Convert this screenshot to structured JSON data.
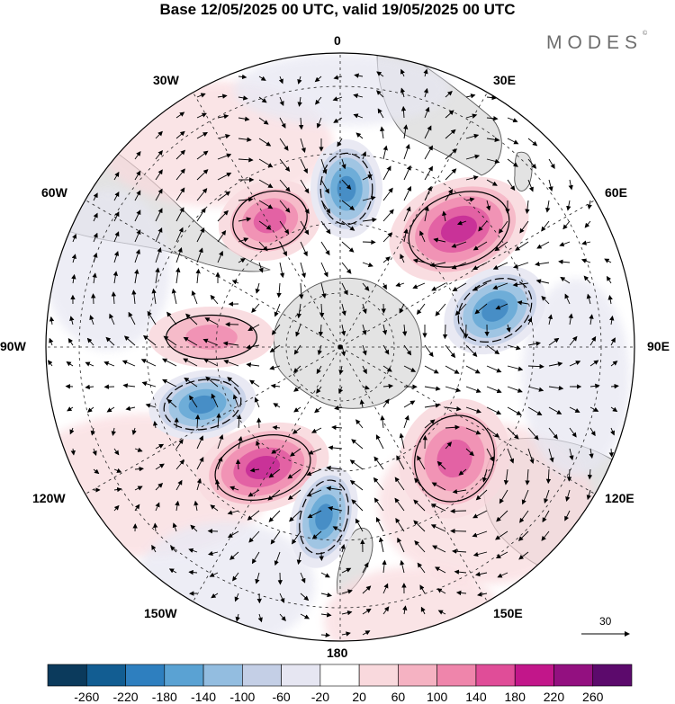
{
  "title": "Base 12/05/2025 00 UTC, valid 19/05/2025 00 UTC",
  "brand": "MODES",
  "brand_mark": "©",
  "map": {
    "projection": "south-polar-stereographic",
    "longitude_labels": {
      "top": "0",
      "top_right": "30E",
      "right_upper": "60E",
      "right": "90E",
      "right_lower": "120E",
      "bottom_right": "150E",
      "bottom": "180",
      "bottom_left": "150W",
      "left_lower": "120W",
      "left": "90W",
      "left_upper": "60W",
      "top_left": "30W"
    },
    "colors": {
      "land": "#e3e3e3",
      "coast": "#555555",
      "grid": "#222222"
    },
    "anomalies": [
      {
        "name": "atlantic-high",
        "sign": "positive",
        "peak": 180
      },
      {
        "name": "indian-high",
        "sign": "positive",
        "peak": 220
      },
      {
        "name": "pacific-high",
        "sign": "positive",
        "peak": 220
      },
      {
        "name": "east-pacific-high",
        "sign": "positive",
        "peak": 180
      },
      {
        "name": "amundsen-high",
        "sign": "positive",
        "peak": 140
      },
      {
        "name": "atlantic-low",
        "sign": "negative",
        "peak": -180
      },
      {
        "name": "indian-low",
        "sign": "negative",
        "peak": -180
      },
      {
        "name": "bellingshausen-low",
        "sign": "negative",
        "peak": -180
      },
      {
        "name": "ross-low",
        "sign": "negative",
        "peak": -180
      }
    ],
    "reference_vector": "30"
  },
  "colorbar": {
    "colors": [
      "#0b3a5c",
      "#125d92",
      "#2e7fbf",
      "#5aa2d3",
      "#93bde0",
      "#c4cfe6",
      "#e6e6f2",
      "#ffffff",
      "#f9d9dd",
      "#f5b2c2",
      "#ef85ab",
      "#e04d98",
      "#c2168a",
      "#931080",
      "#5c0a6c"
    ],
    "ticks": [
      "-260",
      "-220",
      "-180",
      "-140",
      "-100",
      "-60",
      "-20",
      "20",
      "60",
      "100",
      "140",
      "180",
      "220",
      "260"
    ]
  }
}
